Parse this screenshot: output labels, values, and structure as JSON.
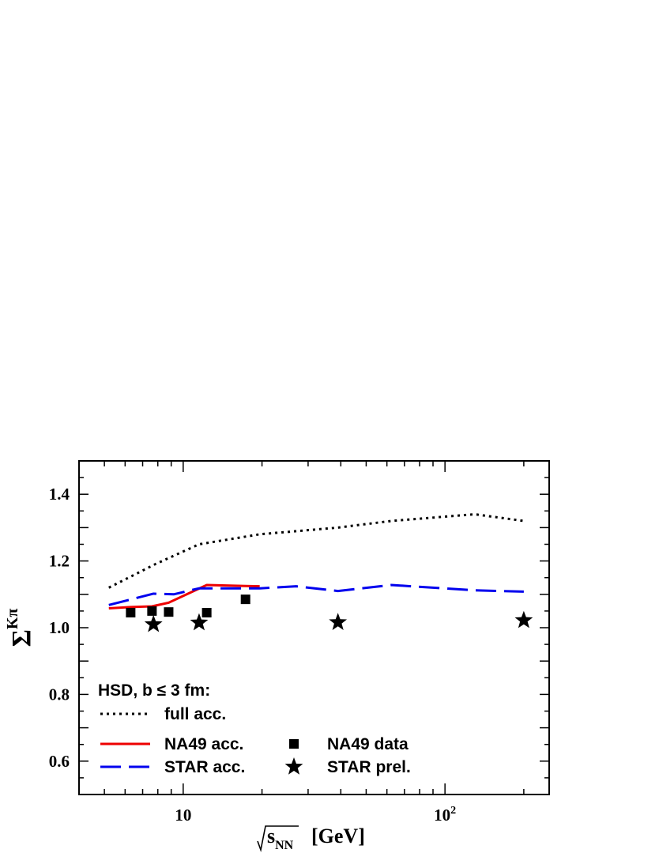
{
  "chart_data": {
    "type": "line",
    "xlabel": {
      "base": "s",
      "sub": "NN",
      "unit": "[GeV]"
    },
    "ylabel": {
      "base": "Σ",
      "sup": "Kπ"
    },
    "x_scale": "log",
    "xlim": [
      4,
      250
    ],
    "ylim": [
      0.5,
      1.5
    ],
    "x_ticks": [
      {
        "value": 10,
        "base": "10",
        "exp": ""
      },
      {
        "value": 100,
        "base": "10",
        "exp": "2"
      }
    ],
    "y_ticks": [
      "0.6",
      "0.8",
      "1.0",
      "1.2",
      "1.4"
    ],
    "grid": false,
    "legend": {
      "position": "bottom-left",
      "header": "HSD, b ≤ 3 fm:",
      "items": [
        {
          "label": "full acc.",
          "series": "full",
          "column": 0
        },
        {
          "label": "NA49 acc.",
          "series": "na49_acc",
          "column": 0
        },
        {
          "label": "STAR acc.",
          "series": "star_acc",
          "column": 0
        },
        {
          "label": "NA49 data",
          "series": "na49_data",
          "column": 1
        },
        {
          "label": "STAR prel.",
          "series": "star_prel",
          "column": 1
        }
      ]
    },
    "series": [
      {
        "id": "full",
        "name": "full acc.",
        "kind": "line",
        "style": "dotted",
        "color": "#000000",
        "x": [
          5.2,
          7.8,
          11.5,
          19.6,
          39,
          62.4,
          130,
          200
        ],
        "y": [
          1.12,
          1.19,
          1.25,
          1.28,
          1.3,
          1.32,
          1.34,
          1.32
        ]
      },
      {
        "id": "na49_acc",
        "name": "NA49 acc.",
        "kind": "line",
        "style": "solid",
        "color": "#ee0000",
        "x": [
          5.2,
          6.3,
          7.6,
          8.8,
          12.3,
          17.3,
          19.6
        ],
        "y": [
          1.058,
          1.062,
          1.064,
          1.075,
          1.128,
          1.125,
          1.124
        ]
      },
      {
        "id": "star_acc",
        "name": "STAR acc.",
        "kind": "line",
        "style": "dashed",
        "color": "#0000ee",
        "x": [
          5.2,
          7.7,
          9.2,
          11.5,
          19.6,
          27,
          39,
          62.4,
          130,
          200
        ],
        "y": [
          1.068,
          1.102,
          1.1,
          1.118,
          1.118,
          1.124,
          1.11,
          1.128,
          1.112,
          1.108
        ]
      },
      {
        "id": "na49_data",
        "name": "NA49 data",
        "kind": "marker",
        "marker": "square",
        "color": "#000000",
        "x": [
          6.3,
          7.6,
          8.8,
          12.3,
          17.3
        ],
        "y": [
          1.045,
          1.05,
          1.047,
          1.045,
          1.085
        ]
      },
      {
        "id": "star_prel",
        "name": "STAR prel.",
        "kind": "marker",
        "marker": "star",
        "color": "#000000",
        "x": [
          7.7,
          11.5,
          39,
          200
        ],
        "y": [
          1.01,
          1.015,
          1.016,
          1.022
        ]
      }
    ]
  }
}
